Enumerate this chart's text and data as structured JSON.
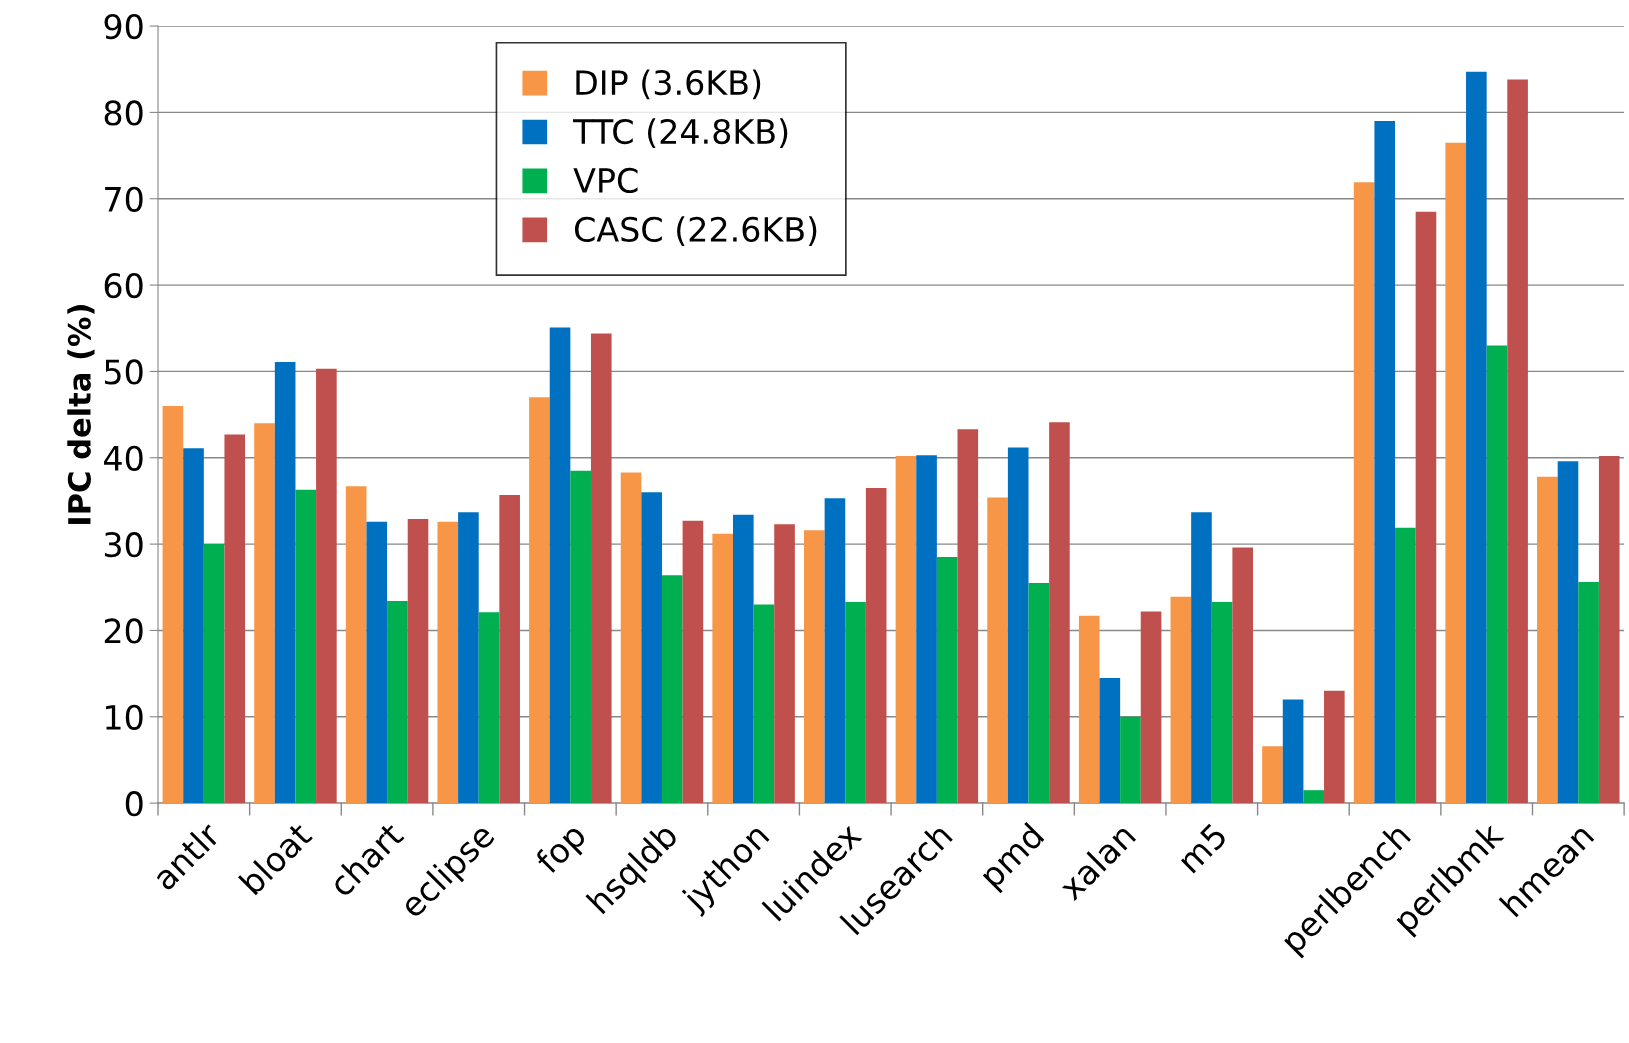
{
  "chart_data": {
    "type": "bar",
    "ylabel": "IPC delta (%)",
    "categories": [
      "antlr",
      "bloat",
      "chart",
      "eclipse",
      "fop",
      "hsqldb",
      "jython",
      "luindex",
      "lusearch",
      "pmd",
      "xalan",
      "m5",
      null,
      "perlbench",
      "perlbmk",
      "hmean"
    ],
    "series": [
      {
        "name": "DIP (3.6KB)",
        "color": "#f79646",
        "values": [
          46.0,
          44.0,
          36.7,
          32.6,
          47.0,
          38.3,
          31.2,
          31.6,
          40.2,
          35.4,
          21.7,
          23.9,
          6.6,
          71.9,
          76.5,
          37.8
        ]
      },
      {
        "name": "TTC (24.8KB)",
        "color": "#0070c0",
        "values": [
          41.1,
          51.1,
          32.6,
          33.7,
          55.1,
          36.0,
          33.4,
          35.3,
          40.3,
          41.2,
          14.5,
          33.7,
          12.0,
          79.0,
          84.7,
          39.6
        ]
      },
      {
        "name": "VPC",
        "color": "#00b050",
        "values": [
          30.0,
          36.3,
          23.4,
          22.1,
          38.5,
          26.4,
          23.0,
          23.3,
          28.5,
          25.5,
          10.0,
          23.3,
          1.5,
          31.9,
          53.0,
          25.6
        ]
      },
      {
        "name": "CASC (22.6KB)",
        "color": "#c0504d",
        "values": [
          42.7,
          50.3,
          32.9,
          35.7,
          54.4,
          32.7,
          32.3,
          36.5,
          43.3,
          44.1,
          22.2,
          29.6,
          13.0,
          68.5,
          83.8,
          40.2
        ]
      }
    ],
    "ylim": [
      0,
      90
    ],
    "yticks": [
      0,
      10,
      20,
      30,
      40,
      50,
      60,
      70,
      80,
      90
    ],
    "grid": "y",
    "legend": "top"
  }
}
